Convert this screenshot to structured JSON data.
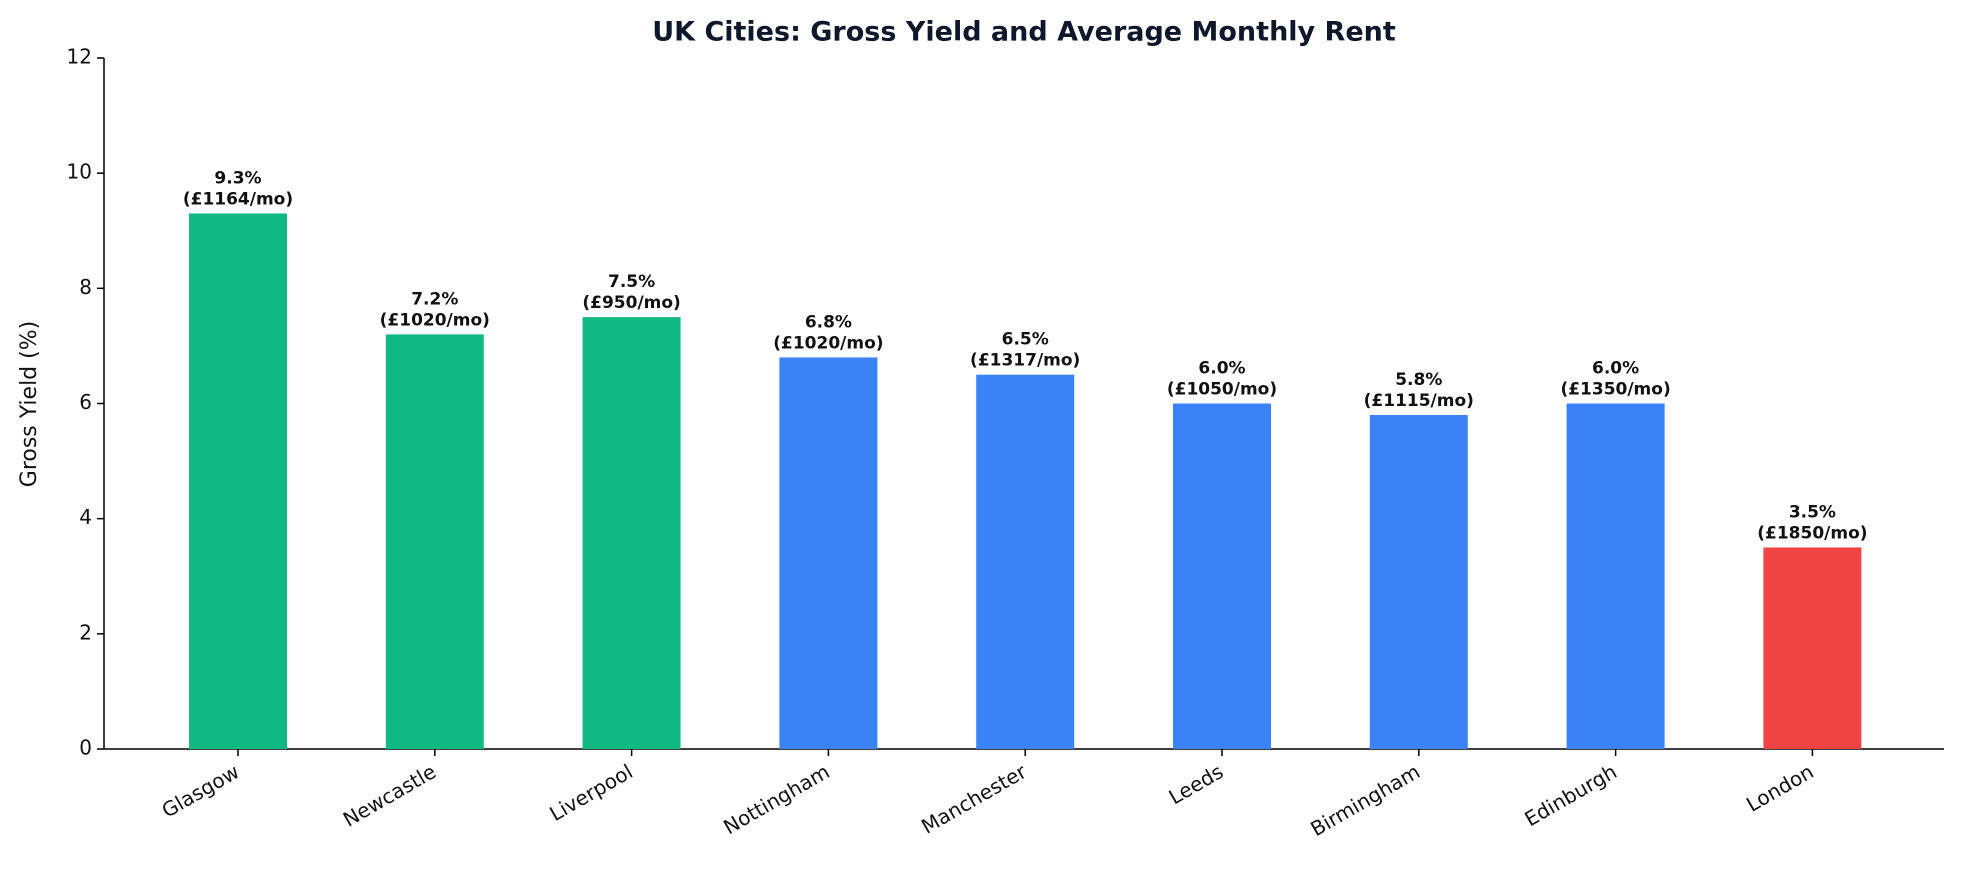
{
  "chart_data": {
    "type": "bar",
    "title": "UK Cities: Gross Yield and Average Monthly Rent",
    "y_label": "Gross Yield (%)",
    "categories": [
      "Glasgow",
      "Newcastle",
      "Liverpool",
      "Nottingham",
      "Manchester",
      "Leeds",
      "Birmingham",
      "Edinburgh",
      "London"
    ],
    "values": [
      9.3,
      7.2,
      7.5,
      6.8,
      6.5,
      6.0,
      5.8,
      6.0,
      3.5
    ],
    "value_labels": [
      "9.3%",
      "7.2%",
      "7.5%",
      "6.8%",
      "6.5%",
      "6.0%",
      "5.8%",
      "6.0%",
      "3.5%"
    ],
    "rent_labels": [
      "(£1164/mo)",
      "(£1020/mo)",
      "(£950/mo)",
      "(£1020/mo)",
      "(£1317/mo)",
      "(£1050/mo)",
      "(£1115/mo)",
      "(£1350/mo)",
      "(£1850/mo)"
    ],
    "colors": [
      "#10b981",
      "#10b981",
      "#10b981",
      "#3b82f6",
      "#3b82f6",
      "#3b82f6",
      "#3b82f6",
      "#3b82f6",
      "#ef4444"
    ],
    "ylim": [
      0,
      12
    ],
    "yticks": [
      0,
      2,
      4,
      6,
      8,
      10,
      12
    ],
    "grid": false
  }
}
